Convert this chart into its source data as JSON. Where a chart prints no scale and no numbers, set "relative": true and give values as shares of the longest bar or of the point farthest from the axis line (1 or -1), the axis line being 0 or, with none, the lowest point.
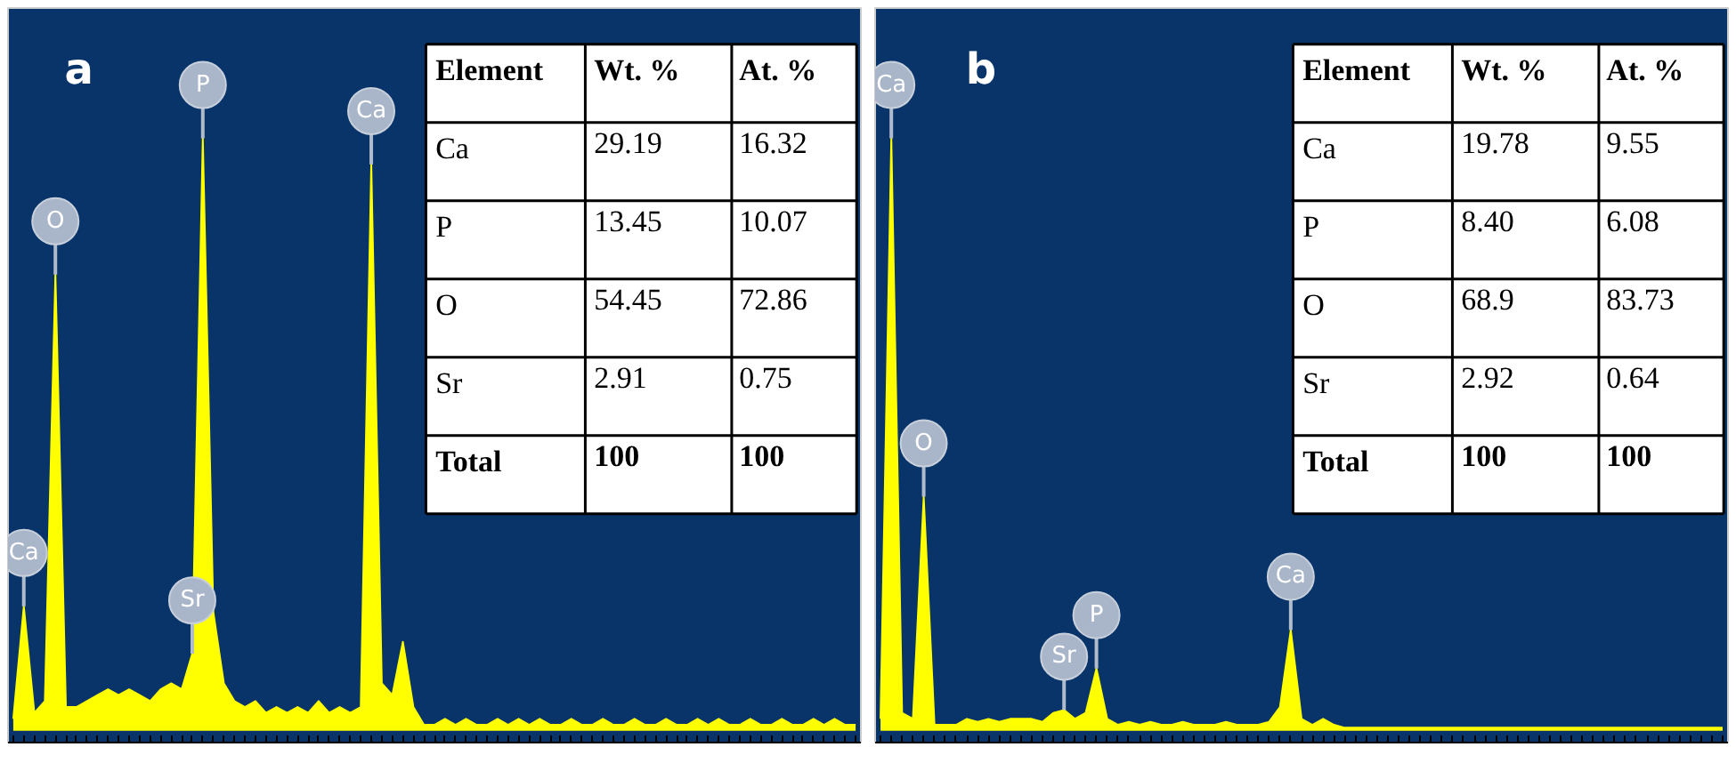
{
  "chart_data": [
    {
      "type": "area",
      "title": "a",
      "relative": true,
      "color": "#ffff00",
      "categories": [
        null,
        null,
        null,
        null,
        null,
        null,
        null,
        null,
        null,
        null,
        null,
        null,
        null,
        null,
        null,
        null,
        null,
        null,
        null,
        null,
        null,
        null,
        null,
        null,
        null,
        null,
        null,
        null,
        null,
        null,
        null,
        null,
        null,
        null,
        null,
        null,
        null,
        null,
        null,
        null,
        null,
        null,
        null,
        null,
        null,
        null,
        null,
        null,
        null,
        null,
        null,
        null,
        null,
        null,
        null,
        null,
        null,
        null,
        null,
        null,
        null,
        null,
        null,
        null,
        null,
        null,
        null,
        null,
        null,
        null,
        null,
        null,
        null,
        null,
        null,
        null,
        null,
        null,
        null,
        null,
        null
      ],
      "values": [
        0.02,
        0.21,
        0.03,
        0.05,
        0.77,
        0.04,
        0.04,
        0.05,
        0.06,
        0.07,
        0.06,
        0.07,
        0.06,
        0.05,
        0.07,
        0.08,
        0.07,
        0.13,
        1.0,
        0.2,
        0.08,
        0.05,
        0.04,
        0.05,
        0.03,
        0.04,
        0.03,
        0.04,
        0.03,
        0.05,
        0.03,
        0.04,
        0.03,
        0.04,
        0.956,
        0.08,
        0.06,
        0.15,
        0.04,
        0.01,
        0.01,
        0.02,
        0.01,
        0.02,
        0.01,
        0.01,
        0.02,
        0.01,
        0.02,
        0.01,
        0.02,
        0.01,
        0.01,
        0.02,
        0.01,
        0.01,
        0.02,
        0.01,
        0.01,
        0.02,
        0.01,
        0.01,
        0.02,
        0.01,
        0.01,
        0.02,
        0.01,
        0.02,
        0.01,
        0.01,
        0.02,
        0.01,
        0.01,
        0.02,
        0.01,
        0.01,
        0.02,
        0.01,
        0.02,
        0.01,
        0.01
      ],
      "annotations": [
        {
          "text": "Ca",
          "y": 0.21
        },
        {
          "text": "O",
          "y": 0.77
        },
        {
          "text": "Sr",
          "y": 0.13
        },
        {
          "text": "P",
          "y": 1.0
        },
        {
          "text": "Ca",
          "y": 0.956
        },
        "Element",
        "Wt. %",
        "At. %",
        "Ca",
        "29.19",
        "16.32",
        "P",
        "13.45",
        "10.07",
        "O",
        "54.45",
        "72.86",
        "Sr",
        "2.91",
        "0.75",
        "Total",
        "100",
        "100"
      ]
    },
    {
      "type": "area",
      "title": "b",
      "relative": true,
      "color": "#ffff00",
      "categories": [
        null,
        null,
        null,
        null,
        null,
        null,
        null,
        null,
        null,
        null,
        null,
        null,
        null,
        null,
        null,
        null,
        null,
        null,
        null,
        null,
        null,
        null,
        null,
        null,
        null,
        null,
        null,
        null,
        null,
        null,
        null,
        null,
        null,
        null,
        null,
        null,
        null,
        null,
        null,
        null,
        null,
        null,
        null,
        null,
        null,
        null,
        null,
        null,
        null,
        null,
        null,
        null,
        null,
        null,
        null,
        null,
        null,
        null,
        null,
        null,
        null,
        null,
        null,
        null,
        null,
        null,
        null,
        null,
        null,
        null,
        null,
        null,
        null,
        null,
        null,
        null,
        null,
        null,
        null
      ],
      "values": [
        0.02,
        1.0,
        0.03,
        0.02,
        0.395,
        0.01,
        0.01,
        0.01,
        0.02,
        0.015,
        0.02,
        0.015,
        0.02,
        0.02,
        0.02,
        0.015,
        0.03,
        0.035,
        0.02,
        0.03,
        0.105,
        0.02,
        0.01,
        0.015,
        0.01,
        0.015,
        0.01,
        0.01,
        0.015,
        0.01,
        0.01,
        0.01,
        0.015,
        0.01,
        0.01,
        0.01,
        0.015,
        0.04,
        0.17,
        0.02,
        0.01,
        0.02,
        0.01,
        0.005,
        0.005,
        0.005,
        0.005,
        0.005,
        0.005,
        0.005,
        0.005,
        0.005,
        0.005,
        0.005,
        0.005,
        0.005,
        0.005,
        0.005,
        0.005,
        0.005,
        0.005,
        0.005,
        0.005,
        0.005,
        0.005,
        0.005,
        0.005,
        0.005,
        0.005,
        0.005,
        0.005,
        0.005,
        0.005,
        0.005,
        0.005,
        0.005,
        0.005,
        0.005,
        0.005
      ],
      "annotations": [
        {
          "text": "Ca",
          "y": 1.0
        },
        {
          "text": "O",
          "y": 0.395
        },
        {
          "text": "Sr",
          "y": 0.035
        },
        {
          "text": "P",
          "y": 0.105
        },
        {
          "text": "Ca",
          "y": 0.17
        },
        "Element",
        "Wt. %",
        "At. %",
        "Ca",
        "19.78",
        "9.55",
        "P",
        "8.40",
        "6.08",
        "O",
        "68.9",
        "83.73",
        "Sr",
        "2.92",
        "0.64",
        "Total",
        "100",
        "100"
      ]
    }
  ]
}
